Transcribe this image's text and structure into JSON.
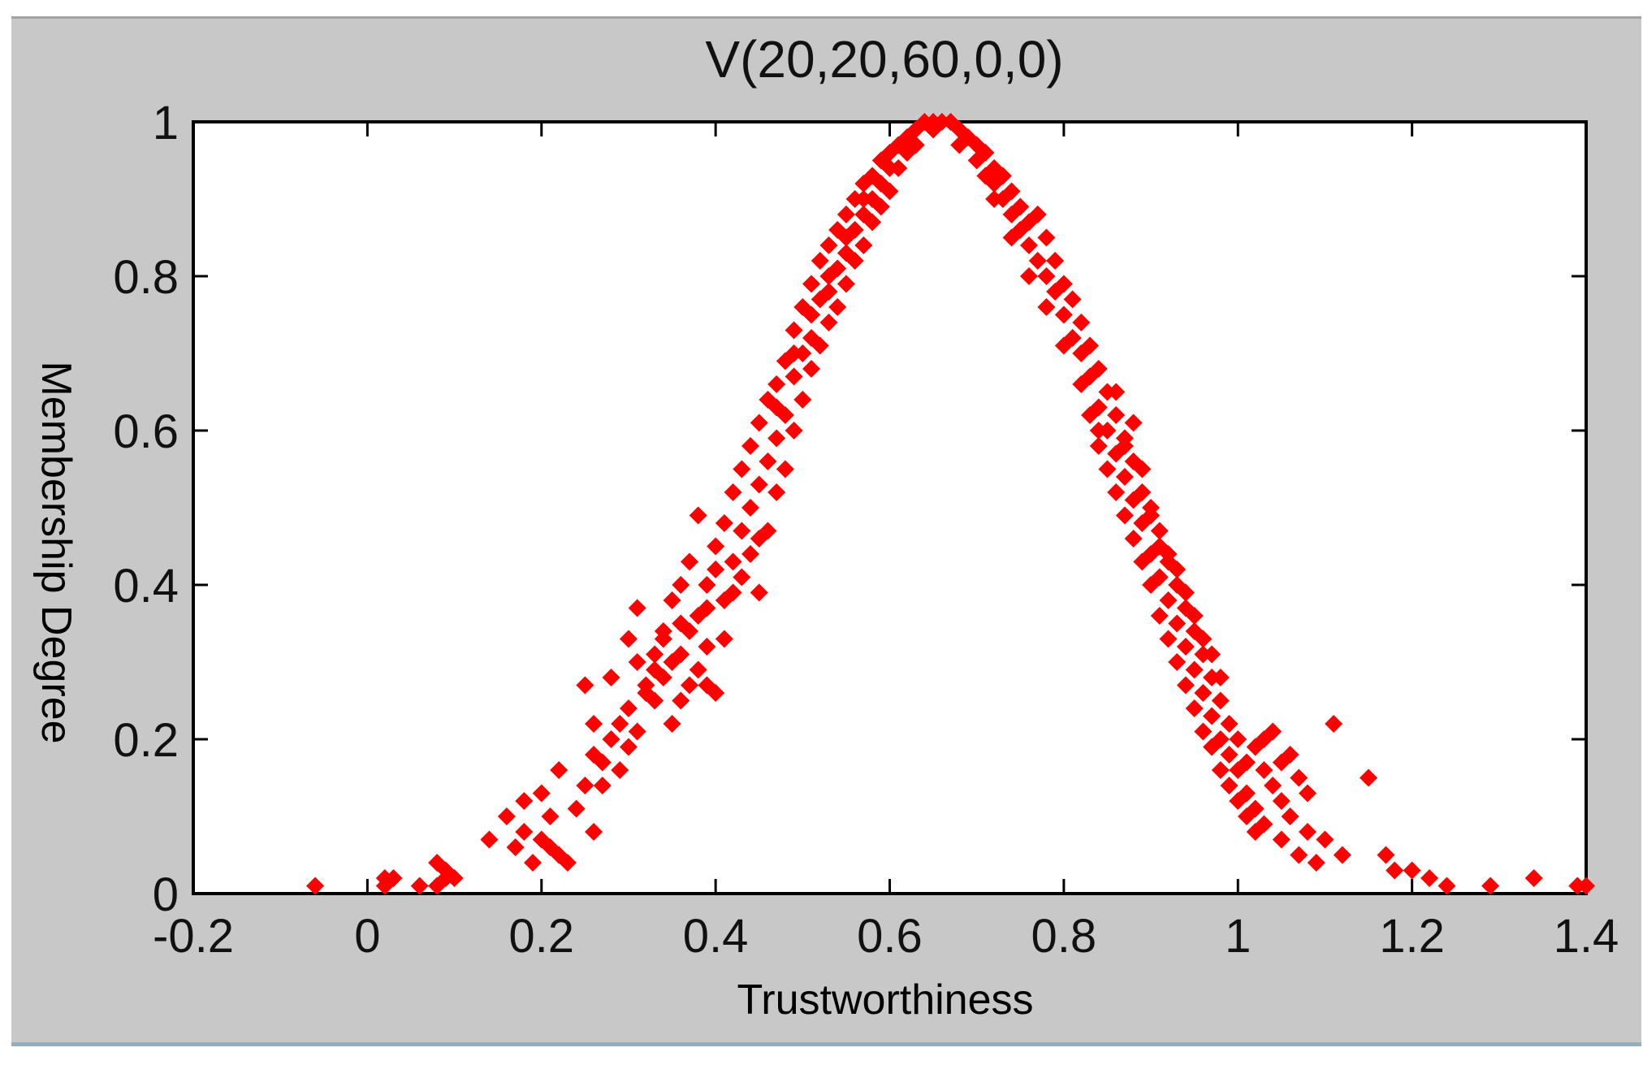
{
  "chart_data": {
    "type": "scatter",
    "title": "V(20,20,60,0,0)",
    "xlabel": "Trustworthiness",
    "ylabel": "Membership Degree",
    "xlim": [
      -0.2,
      1.4
    ],
    "ylim": [
      0,
      1
    ],
    "xticks": [
      "-0.2",
      "0",
      "0.2",
      "0.4",
      "0.6",
      "0.8",
      "1",
      "1.2",
      "1.4"
    ],
    "yticks": [
      "0",
      "0.2",
      "0.4",
      "0.6",
      "0.8",
      "1"
    ],
    "grid": false,
    "marker": "diamond",
    "series": [
      {
        "color": "#ff0000",
        "points": [
          [
            -0.06,
            0.01
          ],
          [
            0.02,
            0.02
          ],
          [
            0.06,
            0.01
          ],
          [
            0.08,
            0.04
          ],
          [
            0.09,
            0.02
          ],
          [
            0.09,
            0.03
          ],
          [
            0.14,
            0.07
          ],
          [
            0.16,
            0.1
          ],
          [
            0.18,
            0.08
          ],
          [
            0.18,
            0.12
          ],
          [
            0.2,
            0.07
          ],
          [
            0.2,
            0.13
          ],
          [
            0.21,
            0.1
          ],
          [
            0.22,
            0.05
          ],
          [
            0.22,
            0.16
          ],
          [
            0.24,
            0.11
          ],
          [
            0.25,
            0.14
          ],
          [
            0.26,
            0.08
          ],
          [
            0.25,
            0.27
          ],
          [
            0.26,
            0.18
          ],
          [
            0.27,
            0.17
          ],
          [
            0.28,
            0.2
          ],
          [
            0.28,
            0.28
          ],
          [
            0.29,
            0.22
          ],
          [
            0.3,
            0.24
          ],
          [
            0.3,
            0.19
          ],
          [
            0.31,
            0.3
          ],
          [
            0.32,
            0.26
          ],
          [
            0.31,
            0.37
          ],
          [
            0.33,
            0.31
          ],
          [
            0.34,
            0.33
          ],
          [
            0.34,
            0.28
          ],
          [
            0.35,
            0.38
          ],
          [
            0.35,
            0.3
          ],
          [
            0.36,
            0.25
          ],
          [
            0.36,
            0.4
          ],
          [
            0.37,
            0.34
          ],
          [
            0.37,
            0.43
          ],
          [
            0.38,
            0.36
          ],
          [
            0.38,
            0.49
          ],
          [
            0.39,
            0.4
          ],
          [
            0.39,
            0.32
          ],
          [
            0.4,
            0.26
          ],
          [
            0.4,
            0.45
          ],
          [
            0.41,
            0.48
          ],
          [
            0.41,
            0.38
          ],
          [
            0.42,
            0.52
          ],
          [
            0.42,
            0.43
          ],
          [
            0.43,
            0.55
          ],
          [
            0.43,
            0.47
          ],
          [
            0.44,
            0.5
          ],
          [
            0.44,
            0.58
          ],
          [
            0.45,
            0.53
          ],
          [
            0.45,
            0.61
          ],
          [
            0.45,
            0.39
          ],
          [
            0.46,
            0.64
          ],
          [
            0.46,
            0.56
          ],
          [
            0.47,
            0.66
          ],
          [
            0.47,
            0.59
          ],
          [
            0.48,
            0.69
          ],
          [
            0.48,
            0.62
          ],
          [
            0.49,
            0.73
          ],
          [
            0.49,
            0.67
          ],
          [
            0.5,
            0.76
          ],
          [
            0.5,
            0.7
          ],
          [
            0.51,
            0.79
          ],
          [
            0.51,
            0.72
          ],
          [
            0.52,
            0.82
          ],
          [
            0.52,
            0.77
          ],
          [
            0.53,
            0.84
          ],
          [
            0.53,
            0.78
          ],
          [
            0.54,
            0.86
          ],
          [
            0.54,
            0.81
          ],
          [
            0.55,
            0.88
          ],
          [
            0.55,
            0.83
          ],
          [
            0.56,
            0.9
          ],
          [
            0.56,
            0.86
          ],
          [
            0.57,
            0.92
          ],
          [
            0.57,
            0.84
          ],
          [
            0.58,
            0.93
          ],
          [
            0.58,
            0.9
          ],
          [
            0.59,
            0.95
          ],
          [
            0.59,
            0.92
          ],
          [
            0.6,
            0.96
          ],
          [
            0.6,
            0.94
          ],
          [
            0.61,
            0.97
          ],
          [
            0.62,
            0.98
          ],
          [
            0.62,
            0.96
          ],
          [
            0.63,
            0.99
          ],
          [
            0.64,
            1.0
          ],
          [
            0.65,
            1.0
          ],
          [
            0.66,
            1.0
          ],
          [
            0.67,
            1.0
          ],
          [
            0.68,
            0.99
          ],
          [
            0.69,
            0.98
          ],
          [
            0.7,
            0.97
          ],
          [
            0.7,
            0.95
          ],
          [
            0.71,
            0.96
          ],
          [
            0.72,
            0.94
          ],
          [
            0.72,
            0.92
          ],
          [
            0.73,
            0.93
          ],
          [
            0.73,
            0.9
          ],
          [
            0.74,
            0.91
          ],
          [
            0.74,
            0.88
          ],
          [
            0.75,
            0.89
          ],
          [
            0.75,
            0.86
          ],
          [
            0.76,
            0.87
          ],
          [
            0.76,
            0.84
          ],
          [
            0.77,
            0.88
          ],
          [
            0.77,
            0.82
          ],
          [
            0.78,
            0.85
          ],
          [
            0.78,
            0.8
          ],
          [
            0.79,
            0.82
          ],
          [
            0.79,
            0.78
          ],
          [
            0.8,
            0.79
          ],
          [
            0.8,
            0.75
          ],
          [
            0.81,
            0.77
          ],
          [
            0.81,
            0.72
          ],
          [
            0.82,
            0.74
          ],
          [
            0.82,
            0.7
          ],
          [
            0.83,
            0.71
          ],
          [
            0.83,
            0.67
          ],
          [
            0.84,
            0.68
          ],
          [
            0.84,
            0.63
          ],
          [
            0.85,
            0.65
          ],
          [
            0.85,
            0.6
          ],
          [
            0.86,
            0.62
          ],
          [
            0.86,
            0.57
          ],
          [
            0.87,
            0.59
          ],
          [
            0.87,
            0.54
          ],
          [
            0.88,
            0.56
          ],
          [
            0.88,
            0.51
          ],
          [
            0.89,
            0.52
          ],
          [
            0.89,
            0.48
          ],
          [
            0.9,
            0.49
          ],
          [
            0.9,
            0.44
          ],
          [
            0.91,
            0.45
          ],
          [
            0.91,
            0.41
          ],
          [
            0.92,
            0.43
          ],
          [
            0.92,
            0.38
          ],
          [
            0.93,
            0.4
          ],
          [
            0.93,
            0.35
          ],
          [
            0.94,
            0.37
          ],
          [
            0.94,
            0.32
          ],
          [
            0.95,
            0.34
          ],
          [
            0.95,
            0.29
          ],
          [
            0.96,
            0.31
          ],
          [
            0.96,
            0.26
          ],
          [
            0.97,
            0.28
          ],
          [
            0.97,
            0.23
          ],
          [
            0.98,
            0.25
          ],
          [
            0.98,
            0.2
          ],
          [
            0.99,
            0.22
          ],
          [
            0.99,
            0.18
          ],
          [
            1.0,
            0.2
          ],
          [
            1.0,
            0.16
          ],
          [
            1.01,
            0.17
          ],
          [
            1.01,
            0.13
          ],
          [
            1.02,
            0.19
          ],
          [
            1.02,
            0.11
          ],
          [
            1.03,
            0.16
          ],
          [
            1.03,
            0.09
          ],
          [
            1.04,
            0.14
          ],
          [
            1.04,
            0.21
          ],
          [
            1.05,
            0.12
          ],
          [
            1.05,
            0.07
          ],
          [
            1.06,
            0.18
          ],
          [
            1.06,
            0.1
          ],
          [
            1.07,
            0.15
          ],
          [
            1.07,
            0.05
          ],
          [
            1.08,
            0.13
          ],
          [
            1.08,
            0.08
          ],
          [
            1.09,
            0.04
          ],
          [
            1.1,
            0.07
          ],
          [
            1.11,
            0.22
          ],
          [
            1.12,
            0.05
          ],
          [
            1.15,
            0.15
          ],
          [
            1.17,
            0.05
          ],
          [
            1.18,
            0.03
          ],
          [
            1.2,
            0.03
          ],
          [
            1.22,
            0.02
          ],
          [
            1.24,
            0.01
          ],
          [
            1.29,
            0.01
          ],
          [
            1.34,
            0.02
          ],
          [
            1.39,
            0.01
          ],
          [
            1.4,
            0.01
          ],
          [
            0.02,
            0.01
          ],
          [
            0.1,
            0.02
          ],
          [
            0.03,
            0.02
          ],
          [
            0.08,
            0.01
          ],
          [
            0.17,
            0.06
          ],
          [
            0.19,
            0.04
          ],
          [
            0.21,
            0.06
          ],
          [
            0.23,
            0.04
          ],
          [
            0.26,
            0.22
          ],
          [
            0.27,
            0.14
          ],
          [
            0.29,
            0.16
          ],
          [
            0.31,
            0.21
          ],
          [
            0.33,
            0.25
          ],
          [
            0.35,
            0.22
          ],
          [
            0.36,
            0.35
          ],
          [
            0.38,
            0.29
          ],
          [
            0.39,
            0.37
          ],
          [
            0.4,
            0.42
          ],
          [
            0.41,
            0.33
          ],
          [
            0.42,
            0.39
          ],
          [
            0.43,
            0.41
          ],
          [
            0.44,
            0.44
          ],
          [
            0.46,
            0.47
          ],
          [
            0.47,
            0.52
          ],
          [
            0.48,
            0.55
          ],
          [
            0.49,
            0.6
          ],
          [
            0.5,
            0.64
          ],
          [
            0.51,
            0.68
          ],
          [
            0.52,
            0.71
          ],
          [
            0.53,
            0.74
          ],
          [
            0.54,
            0.76
          ],
          [
            0.55,
            0.79
          ],
          [
            0.56,
            0.82
          ],
          [
            0.57,
            0.88
          ],
          [
            0.58,
            0.87
          ],
          [
            0.59,
            0.89
          ],
          [
            0.6,
            0.91
          ],
          [
            0.61,
            0.94
          ],
          [
            0.63,
            0.97
          ],
          [
            0.65,
            0.99
          ],
          [
            0.68,
            0.97
          ],
          [
            0.71,
            0.93
          ],
          [
            0.72,
            0.9
          ],
          [
            0.74,
            0.85
          ],
          [
            0.76,
            0.8
          ],
          [
            0.78,
            0.76
          ],
          [
            0.8,
            0.71
          ],
          [
            0.82,
            0.66
          ],
          [
            0.83,
            0.62
          ],
          [
            0.84,
            0.58
          ],
          [
            0.85,
            0.55
          ],
          [
            0.86,
            0.52
          ],
          [
            0.87,
            0.49
          ],
          [
            0.88,
            0.46
          ],
          [
            0.89,
            0.43
          ],
          [
            0.9,
            0.4
          ],
          [
            0.91,
            0.36
          ],
          [
            0.92,
            0.33
          ],
          [
            0.93,
            0.3
          ],
          [
            0.94,
            0.27
          ],
          [
            0.95,
            0.24
          ],
          [
            0.96,
            0.21
          ],
          [
            0.97,
            0.19
          ],
          [
            0.98,
            0.16
          ],
          [
            0.99,
            0.14
          ],
          [
            1.0,
            0.12
          ],
          [
            1.01,
            0.1
          ],
          [
            1.02,
            0.08
          ],
          [
            0.36,
            0.31
          ],
          [
            0.37,
            0.27
          ],
          [
            0.34,
            0.34
          ],
          [
            0.32,
            0.27
          ],
          [
            0.3,
            0.33
          ],
          [
            0.33,
            0.29
          ],
          [
            0.39,
            0.27
          ],
          [
            0.45,
            0.46
          ],
          [
            0.47,
            0.63
          ],
          [
            0.49,
            0.7
          ],
          [
            0.51,
            0.75
          ],
          [
            0.53,
            0.8
          ],
          [
            0.55,
            0.85
          ],
          [
            0.57,
            0.9
          ],
          [
            0.84,
            0.6
          ],
          [
            0.86,
            0.65
          ],
          [
            0.87,
            0.58
          ],
          [
            0.88,
            0.61
          ],
          [
            0.89,
            0.55
          ],
          [
            0.9,
            0.5
          ],
          [
            0.91,
            0.47
          ],
          [
            0.92,
            0.44
          ],
          [
            0.93,
            0.42
          ],
          [
            0.94,
            0.39
          ],
          [
            0.95,
            0.36
          ],
          [
            0.96,
            0.33
          ],
          [
            0.97,
            0.31
          ],
          [
            0.98,
            0.28
          ],
          [
            1.03,
            0.2
          ],
          [
            1.05,
            0.17
          ]
        ]
      }
    ]
  }
}
